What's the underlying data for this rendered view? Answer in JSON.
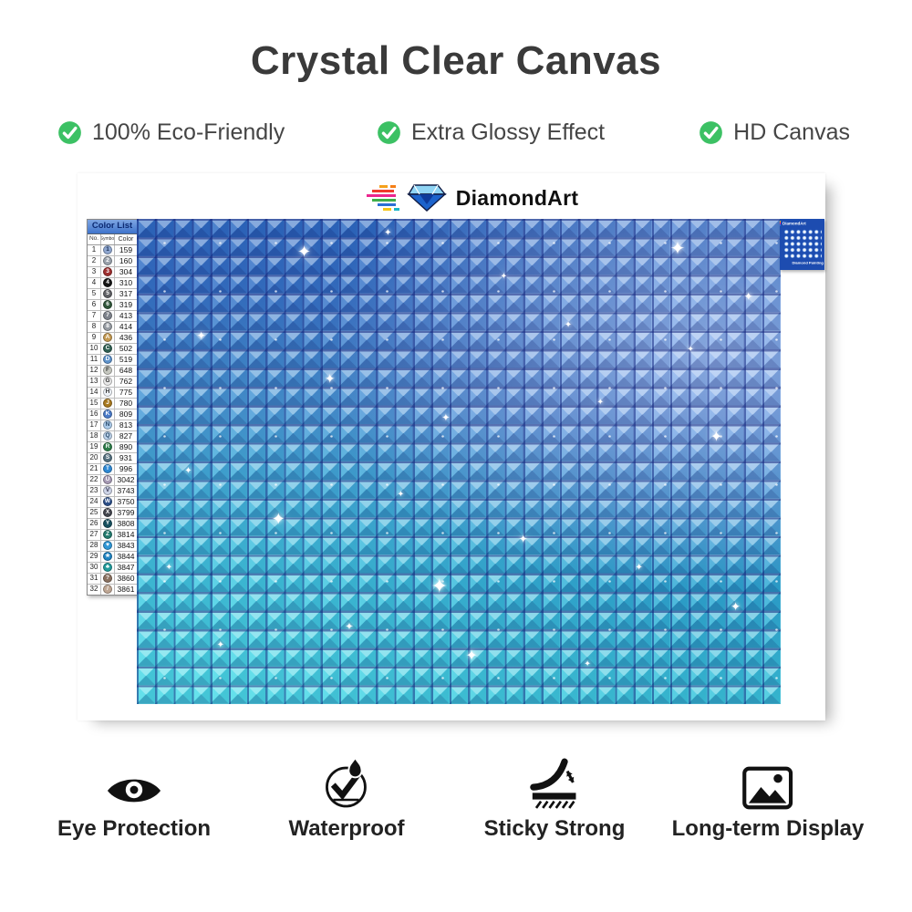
{
  "title": "Crystal Clear Canvas",
  "features": [
    {
      "label": "100% Eco-Friendly"
    },
    {
      "label": "Extra Glossy Effect"
    },
    {
      "label": "HD Canvas"
    }
  ],
  "brand": {
    "name": "DiamondArt"
  },
  "color_list": {
    "title": "Color List",
    "headers": [
      "No.",
      "Symbol",
      "Color"
    ],
    "rows": [
      {
        "no": "1",
        "symbol": "1",
        "code": "159",
        "swatch": "#8ea6cf",
        "text": "#1a2f55"
      },
      {
        "no": "2",
        "symbol": "2",
        "code": "160",
        "swatch": "#9aa2ac",
        "text": "#ffffff"
      },
      {
        "no": "3",
        "symbol": "3",
        "code": "304",
        "swatch": "#9e2f2f",
        "text": "#ffffff"
      },
      {
        "no": "4",
        "symbol": "4",
        "code": "310",
        "swatch": "#151515",
        "text": "#ffffff"
      },
      {
        "no": "5",
        "symbol": "5",
        "code": "317",
        "swatch": "#5f6065",
        "text": "#ffffff"
      },
      {
        "no": "6",
        "symbol": "6",
        "code": "319",
        "swatch": "#31573b",
        "text": "#ffffff"
      },
      {
        "no": "7",
        "symbol": "7",
        "code": "413",
        "swatch": "#7e838c",
        "text": "#ffffff"
      },
      {
        "no": "8",
        "symbol": "8",
        "code": "414",
        "swatch": "#979ca3",
        "text": "#ffffff"
      },
      {
        "no": "9",
        "symbol": "A",
        "code": "436",
        "swatch": "#c49a52",
        "text": "#ffffff"
      },
      {
        "no": "10",
        "symbol": "C",
        "code": "502",
        "swatch": "#2f5f52",
        "text": "#ffffff"
      },
      {
        "no": "11",
        "symbol": "D",
        "code": "519",
        "swatch": "#5e93cc",
        "text": "#ffffff"
      },
      {
        "no": "12",
        "symbol": "F",
        "code": "648",
        "swatch": "#c6c8c0",
        "text": "#3a3a3a"
      },
      {
        "no": "13",
        "symbol": "G",
        "code": "762",
        "swatch": "#e9e9e9",
        "text": "#333333"
      },
      {
        "no": "14",
        "symbol": "H",
        "code": "775",
        "swatch": "#eef3f9",
        "text": "#333333"
      },
      {
        "no": "15",
        "symbol": "J",
        "code": "780",
        "swatch": "#a8791f",
        "text": "#ffffff"
      },
      {
        "no": "16",
        "symbol": "K",
        "code": "809",
        "swatch": "#4a7bc9",
        "text": "#ffffff"
      },
      {
        "no": "17",
        "symbol": "N",
        "code": "813",
        "swatch": "#a9c9e9",
        "text": "#2a4a6a"
      },
      {
        "no": "18",
        "symbol": "Q",
        "code": "827",
        "swatch": "#bcd2ea",
        "text": "#2a4a6a"
      },
      {
        "no": "19",
        "symbol": "R",
        "code": "890",
        "swatch": "#2e7d4a",
        "text": "#ffffff"
      },
      {
        "no": "20",
        "symbol": "S",
        "code": "931",
        "swatch": "#54707f",
        "text": "#ffffff"
      },
      {
        "no": "21",
        "symbol": "T",
        "code": "996",
        "swatch": "#2f8ad6",
        "text": "#ffffff"
      },
      {
        "no": "22",
        "symbol": "U",
        "code": "3042",
        "swatch": "#a79bb5",
        "text": "#ffffff"
      },
      {
        "no": "23",
        "symbol": "V",
        "code": "3743",
        "swatch": "#ccd3e6",
        "text": "#3a3a55"
      },
      {
        "no": "24",
        "symbol": "W",
        "code": "3750",
        "swatch": "#2c4f88",
        "text": "#ffffff"
      },
      {
        "no": "25",
        "symbol": "X",
        "code": "3799",
        "swatch": "#43464e",
        "text": "#ffffff"
      },
      {
        "no": "26",
        "symbol": "Y",
        "code": "3808",
        "swatch": "#17505f",
        "text": "#ffffff"
      },
      {
        "no": "27",
        "symbol": "Z",
        "code": "3814",
        "swatch": "#237b6f",
        "text": "#ffffff"
      },
      {
        "no": "28",
        "symbol": "♥",
        "code": "3843",
        "swatch": "#2f97d6",
        "text": "#ffffff"
      },
      {
        "no": "29",
        "symbol": "★",
        "code": "3844",
        "swatch": "#1d83c2",
        "text": "#ffffff"
      },
      {
        "no": "30",
        "symbol": "♣",
        "code": "3847",
        "swatch": "#219b9b",
        "text": "#ffffff"
      },
      {
        "no": "31",
        "symbol": "?",
        "code": "3860",
        "swatch": "#8a7160",
        "text": "#ffffff"
      },
      {
        "no": "32",
        "symbol": "/",
        "code": "3861",
        "swatch": "#bfa794",
        "text": "#ffffff"
      }
    ]
  },
  "thumbnail": {
    "brand": "DiamondArt",
    "caption": "Diamond Painting Set"
  },
  "benefits": [
    {
      "label": "Eye Protection",
      "icon": "eye-icon"
    },
    {
      "label": "Waterproof",
      "icon": "waterproof-icon"
    },
    {
      "label": "Sticky Strong",
      "icon": "sticky-strong-icon"
    },
    {
      "label": "Long-term Display",
      "icon": "long-term-display-icon"
    }
  ],
  "colors": {
    "check_green": "#3cc164",
    "canvas_blue_top": "#2f6cc4",
    "canvas_cyan_bottom": "#3cc9de",
    "thumb_blue": "#1d4cb0"
  }
}
